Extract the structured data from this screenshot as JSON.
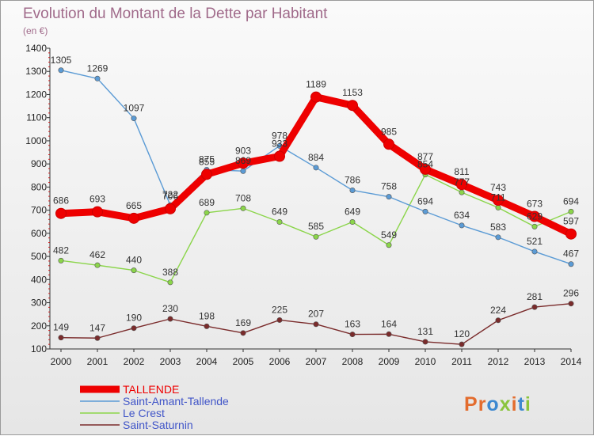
{
  "chart_data": {
    "type": "line",
    "title": "Evolution du Montant de la Dette par Habitant",
    "subtitle": "(en €)",
    "x": [
      "2000",
      "2001",
      "2002",
      "2003",
      "2004",
      "2005",
      "2006",
      "2007",
      "2008",
      "2009",
      "2010",
      "2011",
      "2012",
      "2013",
      "2014"
    ],
    "ylim": [
      100,
      1400
    ],
    "yticks": [
      100,
      200,
      300,
      400,
      500,
      600,
      700,
      800,
      900,
      1000,
      1100,
      1200,
      1300,
      1400
    ],
    "grid": false,
    "legend_position": "bottom-left",
    "series": [
      {
        "name": "TALLENDE",
        "color": "#ee0000",
        "values": [
          686,
          693,
          665,
          706,
          855,
          903,
          933,
          1189,
          1153,
          985,
          877,
          811,
          743,
          673,
          597
        ]
      },
      {
        "name": "Saint-Amant-Tallende",
        "color": "#5b9bd5",
        "values": [
          1305,
          1269,
          1097,
          722,
          875,
          869,
          978,
          884,
          786,
          758,
          694,
          634,
          583,
          521,
          467
        ]
      },
      {
        "name": "Le Crest",
        "color": "#8bd54a",
        "values": [
          482,
          462,
          440,
          388,
          689,
          708,
          649,
          585,
          649,
          549,
          854,
          777,
          711,
          629,
          694
        ]
      },
      {
        "name": "Saint-Saturnin",
        "color": "#7a2b2b",
        "values": [
          149,
          147,
          190,
          230,
          198,
          169,
          225,
          207,
          163,
          164,
          131,
          120,
          224,
          281,
          296
        ]
      }
    ]
  },
  "logo": {
    "text": "Proxiti"
  }
}
